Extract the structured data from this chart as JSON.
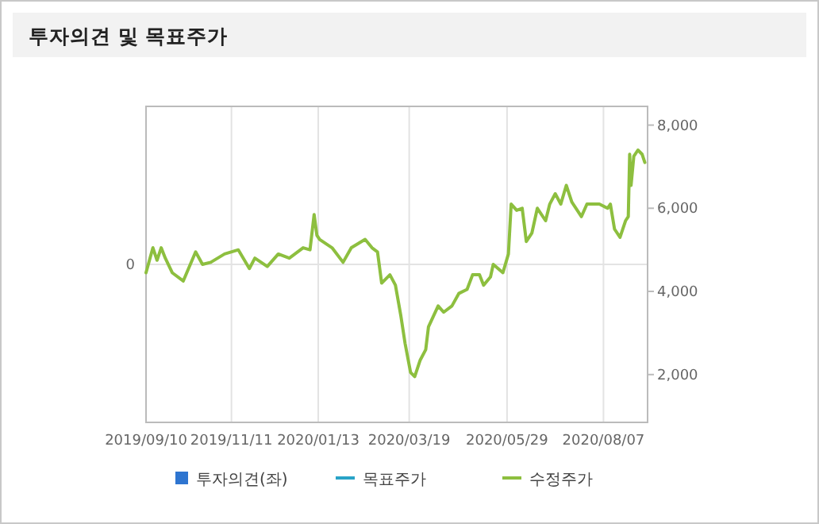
{
  "chart_data": {
    "type": "line",
    "title": "투자의견 및 목표주가",
    "xlim": [
      "2019-09-10",
      "2020-09-08"
    ],
    "xticks": [
      {
        "value": "2019-09-10",
        "label": "2019/09/10"
      },
      {
        "value": "2019-11-11",
        "label": "2019/11/11"
      },
      {
        "value": "2020-01-13",
        "label": "2020/01/13"
      },
      {
        "value": "2020-03-19",
        "label": "2020/03/19"
      },
      {
        "value": "2020-05-29",
        "label": "2020/05/29"
      },
      {
        "value": "2020-08-07",
        "label": "2020/08/07"
      }
    ],
    "annotations": [
      "0"
    ],
    "y2lim": [
      850,
      8450
    ],
    "y2ticks": [
      {
        "value": 2000,
        "label": "2,000"
      },
      {
        "value": 4000,
        "label": "4,000"
      },
      {
        "value": 6000,
        "label": "6,000"
      },
      {
        "value": 8000,
        "label": "8,000"
      }
    ],
    "grid": "x",
    "legend": "bottom",
    "marker": "none",
    "series": [
      {
        "name": "투자의견(좌)",
        "type": "bar",
        "color": "#2e75d0"
      },
      {
        "name": "목표주가",
        "type": "line",
        "color": "#29a3c7"
      },
      {
        "name": "수정주가",
        "color": "#8dbf3f",
        "axis": "y2",
        "x": [
          "2019-09-10",
          "2019-09-15",
          "2019-09-18",
          "2019-09-21",
          "2019-09-24",
          "2019-09-29",
          "2019-10-07",
          "2019-10-16",
          "2019-10-21",
          "2019-10-27",
          "2019-11-06",
          "2019-11-16",
          "2019-11-24",
          "2019-11-28",
          "2019-12-07",
          "2019-12-15",
          "2019-12-23",
          "2020-01-02",
          "2020-01-07",
          "2020-01-10",
          "2020-01-12",
          "2020-01-14",
          "2020-01-23",
          "2020-01-31",
          "2020-02-06",
          "2020-02-16",
          "2020-02-21",
          "2020-02-25",
          "2020-02-28",
          "2020-03-05",
          "2020-03-09",
          "2020-03-13",
          "2020-03-16",
          "2020-03-20",
          "2020-03-23",
          "2020-03-27",
          "2020-03-31",
          "2020-04-02",
          "2020-04-09",
          "2020-04-13",
          "2020-04-19",
          "2020-04-24",
          "2020-04-30",
          "2020-05-04",
          "2020-05-09",
          "2020-05-12",
          "2020-05-17",
          "2020-05-19",
          "2020-05-26",
          "2020-05-30",
          "2020-06-01",
          "2020-06-05",
          "2020-06-09",
          "2020-06-12",
          "2020-06-16",
          "2020-06-20",
          "2020-06-26",
          "2020-06-29",
          "2020-07-03",
          "2020-07-07",
          "2020-07-11",
          "2020-07-15",
          "2020-07-22",
          "2020-07-26",
          "2020-08-04",
          "2020-08-10",
          "2020-08-12",
          "2020-08-15",
          "2020-08-19",
          "2020-08-23",
          "2020-08-25",
          "2020-08-26",
          "2020-08-27",
          "2020-08-29",
          "2020-09-01",
          "2020-09-04",
          "2020-09-06"
        ],
        "values": [
          4450,
          5050,
          4750,
          5050,
          4800,
          4450,
          4250,
          4950,
          4650,
          4700,
          4900,
          5000,
          4550,
          4800,
          4600,
          4900,
          4800,
          5050,
          5000,
          5850,
          5350,
          5250,
          5050,
          4700,
          5050,
          5250,
          5050,
          4950,
          4200,
          4400,
          4150,
          3400,
          2750,
          2050,
          1950,
          2350,
          2600,
          3150,
          3650,
          3500,
          3650,
          3950,
          4050,
          4400,
          4400,
          4150,
          4350,
          4650,
          4450,
          4900,
          6100,
          5950,
          6000,
          5200,
          5400,
          6000,
          5700,
          6100,
          6350,
          6100,
          6550,
          6150,
          5800,
          6100,
          6100,
          6000,
          6100,
          5500,
          5300,
          5700,
          5800,
          7300,
          6550,
          7250,
          7400,
          7300,
          7100
        ]
      }
    ]
  }
}
